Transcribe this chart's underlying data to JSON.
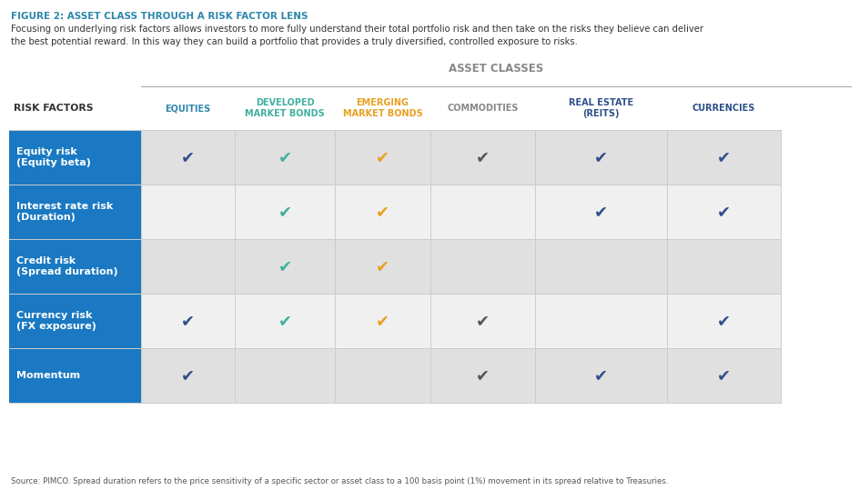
{
  "figure_label": "FIGURE 2: ASSET CLASS THROUGH A RISK FACTOR LENS",
  "figure_label_color": "#2e86ab",
  "subtitle": "Focusing on underlying risk factors allows investors to more fully understand their total portfolio risk and then take on the risks they believe can deliver\nthe best potential reward. In this way they can build a portfolio that provides a truly diversified, controlled exposure to risks.",
  "subtitle_color": "#333333",
  "asset_classes_header": "ASSET CLASSES",
  "asset_classes_header_color": "#888888",
  "col_headers": [
    "RISK FACTORS",
    "EQUITIES",
    "DEVELOPED\nMARKET BONDS",
    "EMERGING\nMARKET BONDS",
    "COMMODITIES",
    "REAL ESTATE\n(REITS)",
    "CURRENCIES"
  ],
  "col_header_colors": [
    "#333333",
    "#2e86ab",
    "#40b09e",
    "#e8a020",
    "#888888",
    "#2e4f8a",
    "#2e4f8a"
  ],
  "risk_factors": [
    "Equity risk\n(Equity beta)",
    "Interest rate risk\n(Duration)",
    "Credit risk\n(Spread duration)",
    "Currency risk\n(FX exposure)",
    "Momentum"
  ],
  "checkmarks": [
    [
      true,
      true,
      true,
      true,
      true,
      true
    ],
    [
      false,
      true,
      true,
      false,
      true,
      true
    ],
    [
      false,
      true,
      true,
      false,
      false,
      false
    ],
    [
      true,
      true,
      true,
      true,
      false,
      true
    ],
    [
      true,
      false,
      false,
      true,
      true,
      true
    ]
  ],
  "check_colors_per_col": [
    "#2e4f8a",
    "#40b09e",
    "#e8a020",
    "#555555",
    "#2e4f8a",
    "#2e4f8a"
  ],
  "header_bg": "#1a79c2",
  "row_bg_odd": "#e0e0e0",
  "row_bg_even": "#f0f0f0",
  "source_text": "Source: PIMCO. Spread duration refers to the price sensitivity of a specific sector or asset class to a 100 basis point (1%) movement in its spread relative to Treasuries.",
  "source_color": "#555555"
}
